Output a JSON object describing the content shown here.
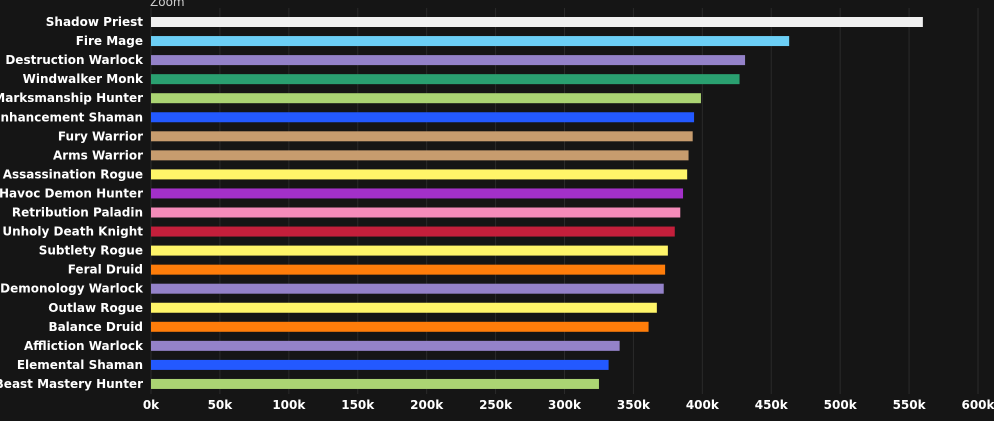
{
  "zoom_label": "Zoom",
  "chart_data": {
    "type": "bar",
    "orientation": "horizontal",
    "title": "",
    "xlabel": "",
    "ylabel": "",
    "xlim": [
      0,
      600000
    ],
    "grid": true,
    "legend": "none",
    "x_ticks": [
      "0k",
      "50k",
      "100k",
      "150k",
      "200k",
      "250k",
      "300k",
      "350k",
      "400k",
      "450k",
      "500k",
      "550k",
      "600k"
    ],
    "categories": [
      "Shadow Priest",
      "Fire Mage",
      "Destruction Warlock",
      "Windwalker Monk",
      "Marksmanship Hunter",
      "Enhancement Shaman",
      "Fury Warrior",
      "Arms Warrior",
      "Assassination Rogue",
      "Havoc Demon Hunter",
      "Retribution Paladin",
      "Unholy Death Knight",
      "Subtlety Rogue",
      "Feral Druid",
      "Demonology Warlock",
      "Outlaw Rogue",
      "Balance Druid",
      "Affliction Warlock",
      "Elemental Shaman",
      "Beast Mastery Hunter"
    ],
    "values": [
      560000,
      463000,
      431000,
      427000,
      399000,
      394000,
      393000,
      390000,
      389000,
      386000,
      384000,
      380000,
      375000,
      373000,
      372000,
      367000,
      361000,
      340000,
      332000,
      325000
    ],
    "colors": [
      "#f0f0f0",
      "#6ccff6",
      "#9482c9",
      "#2aa070",
      "#abd473",
      "#2359ff",
      "#c79c6e",
      "#c79c6e",
      "#fff569",
      "#a330c9",
      "#f58cba",
      "#c41f3b",
      "#fff569",
      "#ff7d0a",
      "#9482c9",
      "#fff569",
      "#ff7d0a",
      "#9482c9",
      "#2359ff",
      "#abd473"
    ]
  }
}
